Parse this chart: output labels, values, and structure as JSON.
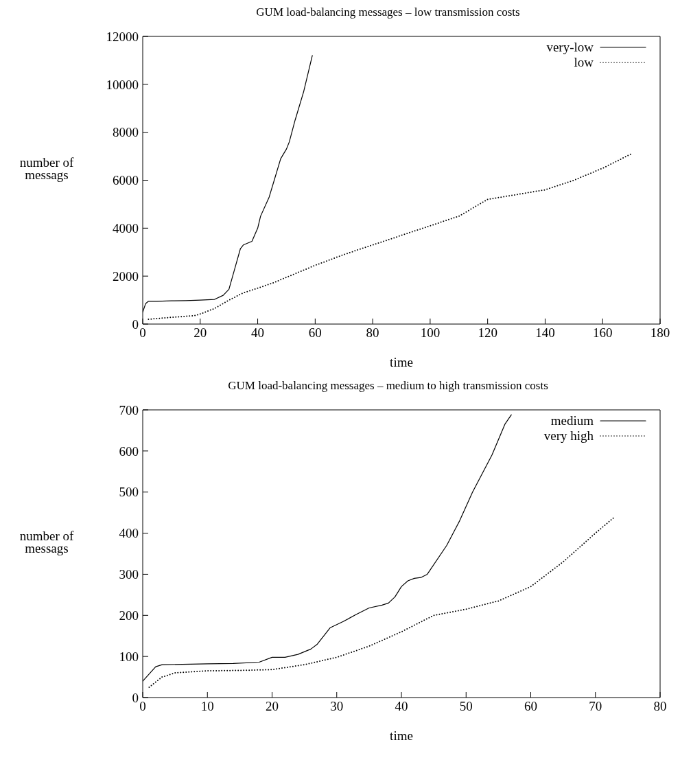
{
  "chart_data": [
    {
      "type": "line",
      "title": "GUM load-balancing messages – low transmission costs",
      "xlabel": "time",
      "ylabel": "number of\nmessags",
      "legend": "top right",
      "marker": "none",
      "xlim": [
        0,
        180
      ],
      "xticks": [
        0,
        20,
        40,
        60,
        80,
        100,
        120,
        140,
        160,
        180
      ],
      "ylim": [
        0,
        12000
      ],
      "yticks": [
        0,
        2000,
        4000,
        6000,
        8000,
        10000,
        12000
      ],
      "series": [
        {
          "name": "very-low",
          "color": "#000000",
          "line_style": "solid",
          "x": [
            0,
            1,
            2,
            5,
            10,
            15,
            20,
            25,
            28,
            30,
            32,
            34,
            35,
            38,
            40,
            41,
            44,
            46,
            48,
            50,
            51,
            53,
            56,
            59
          ],
          "values": [
            500,
            850,
            950,
            950,
            970,
            980,
            1000,
            1030,
            1200,
            1450,
            2300,
            3150,
            3300,
            3450,
            4000,
            4500,
            5300,
            6100,
            6900,
            7300,
            7600,
            8500,
            9700,
            11200
          ]
        },
        {
          "name": "low",
          "color": "#000000",
          "line_style": "dotted",
          "x": [
            2,
            10,
            18,
            20,
            25,
            30,
            35,
            40,
            45,
            50,
            55,
            60,
            70,
            80,
            90,
            100,
            110,
            120,
            130,
            140,
            150,
            160,
            170
          ],
          "values": [
            200,
            280,
            350,
            420,
            650,
            1000,
            1300,
            1500,
            1700,
            1950,
            2200,
            2450,
            2900,
            3300,
            3700,
            4100,
            4500,
            5200,
            5400,
            5600,
            6000,
            6500,
            7100
          ]
        }
      ]
    },
    {
      "type": "line",
      "title": "GUM load-balancing messages – medium to high transmission costs",
      "xlabel": "time",
      "ylabel": "number of\nmessags",
      "legend": "top right",
      "marker": "none",
      "xlim": [
        0,
        80
      ],
      "xticks": [
        0,
        10,
        20,
        30,
        40,
        50,
        60,
        70,
        80
      ],
      "ylim": [
        0,
        700
      ],
      "yticks": [
        0,
        100,
        200,
        300,
        400,
        500,
        600,
        700
      ],
      "series": [
        {
          "name": "medium",
          "color": "#000000",
          "line_style": "solid",
          "x": [
            0,
            2,
            3,
            10,
            14,
            18,
            20,
            22,
            24,
            26,
            27,
            29,
            31,
            33,
            35,
            37,
            38,
            39,
            40,
            41,
            42,
            43,
            44,
            47,
            49,
            51,
            54,
            56,
            57
          ],
          "values": [
            40,
            75,
            80,
            82,
            83,
            86,
            98,
            98,
            105,
            118,
            130,
            170,
            185,
            202,
            218,
            225,
            230,
            245,
            270,
            284,
            290,
            292,
            300,
            370,
            430,
            500,
            590,
            665,
            688
          ]
        },
        {
          "name": "very high",
          "color": "#000000",
          "line_style": "dotted",
          "x": [
            1,
            3,
            5,
            10,
            15,
            20,
            25,
            30,
            35,
            40,
            45,
            50,
            55,
            60,
            65,
            70,
            73
          ],
          "values": [
            25,
            50,
            60,
            65,
            66,
            68,
            80,
            98,
            125,
            160,
            200,
            215,
            235,
            270,
            330,
            400,
            440
          ]
        }
      ]
    }
  ]
}
